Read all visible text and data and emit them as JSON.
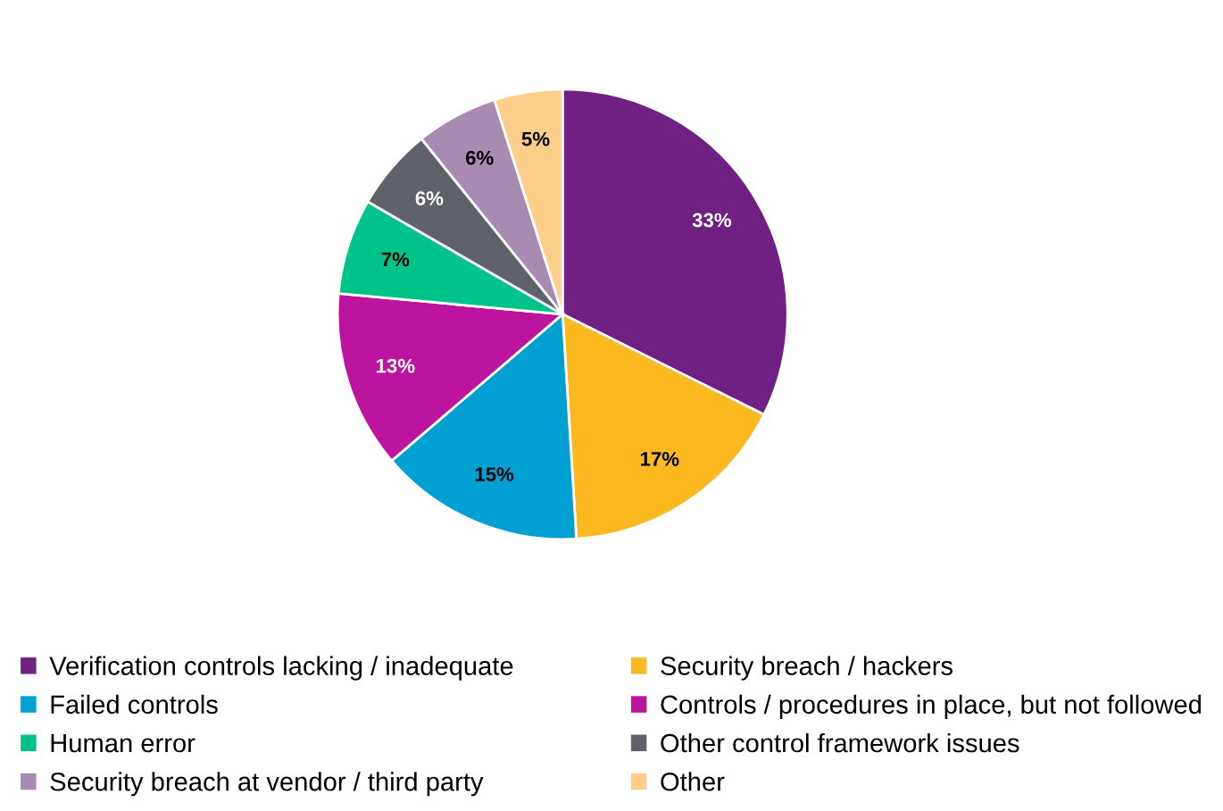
{
  "chart_data": {
    "type": "pie",
    "categories": [
      "Verification controls lacking / inadequate",
      "Security breach / hackers",
      "Failed controls",
      "Controls / procedures in place, but not followed",
      "Human error",
      "Other control framework issues",
      "Security breach at vendor / third party",
      "Other"
    ],
    "values": [
      33,
      17,
      15,
      13,
      7,
      6,
      6,
      5
    ],
    "value_labels": [
      "33%",
      "17%",
      "15%",
      "13%",
      "7%",
      "6%",
      "6%",
      "5%"
    ],
    "colors": [
      "#702082",
      "#fbb81f",
      "#00a0d2",
      "#bd14a0",
      "#00c389",
      "#5f6369",
      "#a78bb0",
      "#fdcd8a"
    ],
    "legend": "bottom"
  }
}
